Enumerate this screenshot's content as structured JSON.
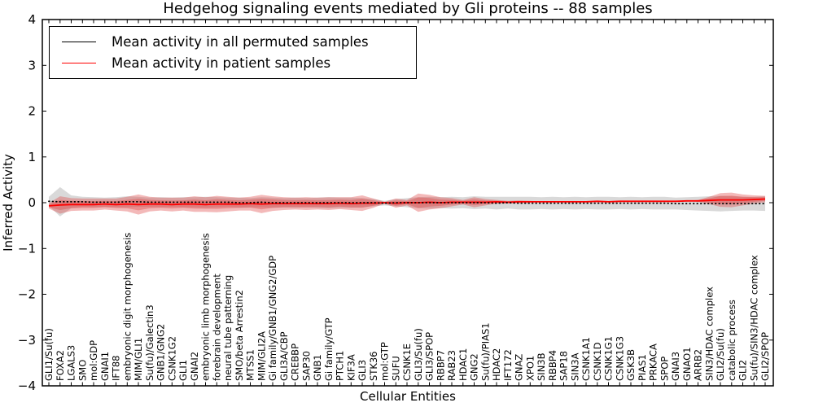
{
  "chart_data": {
    "type": "line",
    "title": "Hedgehog signaling events mediated by Gli proteins -- 88 samples",
    "xlabel": "Cellular Entities",
    "ylabel": "Inferred Activity",
    "ylim": [
      -4,
      4
    ],
    "yticks": [
      4,
      3,
      2,
      1,
      0,
      -1,
      -2,
      -3,
      -4
    ],
    "grid": false,
    "legend_position": "upper left",
    "categories": [
      "GLI1/Su(fu)",
      "FOXA2",
      "LGALS3",
      "SMO",
      "mol:GDP",
      "GNAI1",
      "IFT88",
      "embryonic digit morphogenesis",
      "MIM/GLI1",
      "Su(fu)/Galectin3",
      "GNB1/GNG2",
      "CSNK1G2",
      "GLI1",
      "GNAI2",
      "embryonic limb morphogenesis",
      "forebrain development",
      "neural tube patterning",
      "SMO/beta Arrestin2",
      "MTSS1",
      "MIM/GLI2A",
      "Gi family/GNB1/GNG2/GDP",
      "GLI3A/CBP",
      "CREBBP",
      "SAP30",
      "GNB1",
      "Gi family/GTP",
      "PTCH1",
      "KIF3A",
      "GLI3",
      "STK36",
      "mol:GTP",
      "SUFU",
      "CSNK1E",
      "GLI3/Su(fu)",
      "GLI3/SPOP",
      "RBBP7",
      "RAB23",
      "HDAC1",
      "GNG2",
      "Su(fu)/PIAS1",
      "HDAC2",
      "IFT172",
      "GNAZ",
      "XPO1",
      "SIN3B",
      "RBBP4",
      "SAP18",
      "SIN3A",
      "CSNK1A1",
      "CSNK1D",
      "CSNK1G1",
      "CSNK1G3",
      "GSK3B",
      "PIAS1",
      "PRKACA",
      "SPOP",
      "GNAI3",
      "GNAO1",
      "ARRB2",
      "SIN3/HDAC complex",
      "GLI2/Su(fu)",
      "catabolic process",
      "GLI2",
      "Su(fu)/SIN3/HDAC complex",
      "GLI2/SPOP"
    ],
    "series": [
      {
        "name": "Mean activity in all permuted samples",
        "color": "#000000",
        "style": "dotted",
        "values": [
          0.03,
          0.02,
          0.02,
          0.02,
          0.01,
          0.01,
          0.01,
          0.02,
          0.02,
          0.01,
          0.01,
          0.01,
          0.01,
          0.01,
          0.01,
          0.01,
          0.01,
          0.0,
          0.0,
          0.01,
          0.0,
          0.0,
          0.0,
          0.0,
          0.0,
          0.0,
          0.0,
          0.0,
          0.0,
          0.0,
          -0.01,
          0.0,
          0.0,
          0.0,
          0.0,
          0.0,
          0.0,
          0.0,
          0.0,
          0.0,
          -0.01,
          0.0,
          -0.01,
          -0.01,
          -0.01,
          -0.01,
          -0.01,
          -0.01,
          -0.01,
          -0.01,
          -0.01,
          -0.01,
          -0.01,
          -0.01,
          -0.01,
          -0.01,
          -0.02,
          -0.02,
          -0.02,
          -0.02,
          -0.02,
          -0.02,
          -0.02,
          -0.02,
          -0.02
        ]
      },
      {
        "name": "Mean activity in patient samples",
        "color": "#ff0000",
        "style": "solid",
        "values": [
          -0.07,
          -0.05,
          -0.04,
          -0.04,
          -0.04,
          -0.03,
          -0.04,
          -0.03,
          -0.04,
          -0.03,
          -0.03,
          -0.04,
          -0.03,
          -0.03,
          -0.04,
          -0.03,
          -0.03,
          -0.03,
          -0.02,
          -0.03,
          -0.02,
          -0.02,
          -0.02,
          -0.02,
          -0.02,
          -0.02,
          -0.01,
          -0.02,
          -0.01,
          -0.01,
          0.0,
          -0.01,
          0.0,
          0.0,
          0.01,
          0.0,
          0.01,
          0.01,
          0.01,
          0.01,
          0.02,
          0.01,
          0.02,
          0.02,
          0.02,
          0.02,
          0.02,
          0.02,
          0.02,
          0.03,
          0.02,
          0.03,
          0.03,
          0.03,
          0.03,
          0.03,
          0.03,
          0.04,
          0.04,
          0.05,
          0.06,
          0.06,
          0.06,
          0.07,
          0.08
        ]
      }
    ],
    "bands": [
      {
        "name": "permuted-samples-range",
        "color": "#a0a0a0",
        "opacity": 0.4,
        "layers": 1,
        "mean_series": 0,
        "half_widths": [
          0.1,
          0.32,
          0.14,
          0.11,
          0.11,
          0.1,
          0.11,
          0.12,
          0.11,
          0.1,
          0.11,
          0.1,
          0.11,
          0.11,
          0.12,
          0.11,
          0.1,
          0.11,
          0.1,
          0.11,
          0.11,
          0.1,
          0.11,
          0.1,
          0.11,
          0.12,
          0.11,
          0.11,
          0.1,
          0.08,
          0.05,
          0.08,
          0.1,
          0.12,
          0.13,
          0.12,
          0.13,
          0.12,
          0.14,
          0.13,
          0.14,
          0.13,
          0.14,
          0.14,
          0.13,
          0.14,
          0.13,
          0.14,
          0.13,
          0.14,
          0.14,
          0.13,
          0.14,
          0.13,
          0.14,
          0.14,
          0.13,
          0.14,
          0.15,
          0.16,
          0.17,
          0.16,
          0.15,
          0.15,
          0.16
        ]
      },
      {
        "name": "patient-samples-range",
        "color": "#dd3c3c",
        "opacity": 0.36,
        "layers": 2,
        "mean_series": 1,
        "half_widths": [
          0.06,
          0.19,
          0.14,
          0.13,
          0.13,
          0.12,
          0.13,
          0.16,
          0.22,
          0.16,
          0.14,
          0.15,
          0.14,
          0.17,
          0.16,
          0.18,
          0.16,
          0.14,
          0.15,
          0.2,
          0.16,
          0.14,
          0.13,
          0.14,
          0.13,
          0.14,
          0.13,
          0.14,
          0.17,
          0.1,
          0.02,
          0.1,
          0.06,
          0.2,
          0.16,
          0.12,
          0.09,
          0.05,
          0.11,
          0.07,
          0.04,
          0.03,
          0.03,
          0.02,
          0.0,
          0.0,
          0.0,
          0.0,
          0.0,
          0.0,
          0.0,
          0.0,
          0.0,
          0.0,
          0.0,
          0.0,
          0.0,
          0.0,
          0.02,
          0.08,
          0.15,
          0.16,
          0.12,
          0.09,
          0.07
        ]
      }
    ]
  }
}
